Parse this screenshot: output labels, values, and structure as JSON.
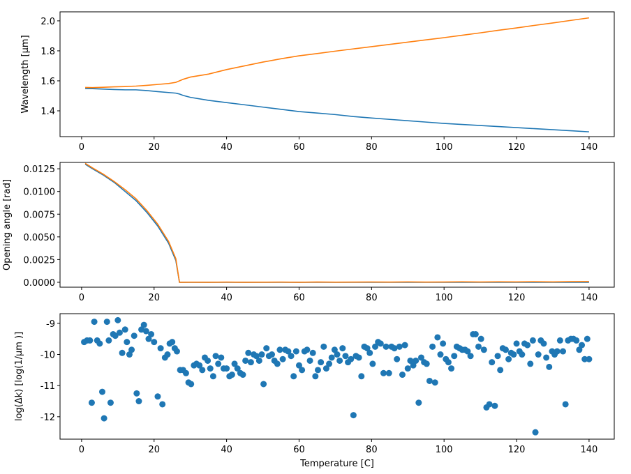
{
  "chart_data": [
    {
      "type": "line",
      "y_label": "Wavelength [μm]",
      "xlim": [
        -5.95,
        146.95
      ],
      "ylim": [
        1.228,
        2.06
      ],
      "xticks": [
        0,
        20,
        40,
        60,
        80,
        100,
        120,
        140
      ],
      "yticks": [
        1.4,
        1.6,
        1.8,
        {
          "value": 2,
          "label": "2.0"
        }
      ],
      "x": [
        1,
        3,
        6,
        9,
        12,
        15,
        18,
        21,
        24,
        26,
        27,
        28,
        30,
        35,
        40,
        45,
        50,
        55,
        60,
        65,
        70,
        75,
        80,
        85,
        90,
        95,
        100,
        105,
        110,
        115,
        120,
        125,
        130,
        135,
        140
      ],
      "series": [
        {
          "color": "#1f77b4",
          "values": [
            1.548,
            1.548,
            1.545,
            1.542,
            1.54,
            1.54,
            1.535,
            1.528,
            1.522,
            1.518,
            1.512,
            1.503,
            1.49,
            1.47,
            1.455,
            1.44,
            1.425,
            1.41,
            1.395,
            1.385,
            1.375,
            1.362,
            1.352,
            1.343,
            1.334,
            1.325,
            1.316,
            1.309,
            1.302,
            1.295,
            1.288,
            1.281,
            1.274,
            1.267,
            1.26
          ]
        },
        {
          "color": "#ff7f0e",
          "values": [
            1.556,
            1.555,
            1.557,
            1.56,
            1.562,
            1.565,
            1.57,
            1.576,
            1.582,
            1.59,
            1.6,
            1.61,
            1.625,
            1.645,
            1.675,
            1.7,
            1.725,
            1.747,
            1.767,
            1.782,
            1.798,
            1.813,
            1.828,
            1.843,
            1.858,
            1.873,
            1.888,
            1.904,
            1.92,
            1.937,
            1.953,
            1.97,
            1.986,
            2.003,
            2.02
          ]
        }
      ]
    },
    {
      "type": "line",
      "y_label": "Opening angle [rad]",
      "xlim": [
        -5.95,
        146.95
      ],
      "ylim": [
        -0.00054,
        0.0132
      ],
      "xticks": [
        0,
        20,
        40,
        60,
        80,
        100,
        120,
        140
      ],
      "yticks": [
        {
          "value": 0,
          "label": "0.0000"
        },
        0.0025,
        {
          "value": 0.005,
          "label": "0.0050"
        },
        0.0075,
        {
          "value": 0.01,
          "label": "0.0100"
        },
        0.0125
      ],
      "x": [
        1,
        3,
        6,
        9,
        12,
        15,
        18,
        21,
        24,
        26,
        27,
        28,
        30,
        35,
        40,
        45,
        50,
        55,
        60,
        65,
        70,
        75,
        80,
        85,
        90,
        95,
        100,
        105,
        110,
        115,
        120,
        125,
        130,
        135,
        140
      ],
      "series": [
        {
          "color": "#1f77b4",
          "values": [
            0.013,
            0.0125,
            0.0118,
            0.011,
            0.01,
            0.009,
            0.0077,
            0.0062,
            0.0043,
            0.0024,
            0,
            0,
            0,
            0,
            0,
            0,
            0,
            0,
            0,
            0,
            0,
            0,
            0,
            0,
            0,
            0,
            0,
            0,
            0,
            0,
            0,
            0,
            0,
            0,
            0
          ]
        },
        {
          "color": "#ff7f0e",
          "values": [
            0.0131,
            0.0126,
            0.0119,
            0.0111,
            0.0102,
            0.0092,
            0.0079,
            0.0064,
            0.0045,
            0.0026,
            0,
            0,
            1e-05,
            0,
            2e-05,
            0,
            1e-05,
            2e-05,
            0,
            3e-05,
            1e-05,
            2e-05,
            3e-05,
            2e-05,
            4e-05,
            2e-05,
            3e-05,
            5e-05,
            3e-05,
            5e-05,
            4e-05,
            6e-05,
            4e-05,
            7e-05,
            8e-05
          ]
        }
      ]
    },
    {
      "type": "scatter",
      "y_label": "log(Δk) [log(1/μm )]",
      "x_label": "Temperature [C]",
      "xlim": [
        -5.95,
        146.95
      ],
      "ylim": [
        -12.72,
        -8.69
      ],
      "xticks": [
        0,
        20,
        40,
        60,
        80,
        100,
        120,
        140
      ],
      "yticks": [
        -12,
        -11,
        -10,
        -9
      ],
      "x": [
        0.7,
        1.5,
        2.3,
        2.8,
        3.5,
        4.3,
        5,
        5.7,
        6.2,
        7,
        7.5,
        8,
        8.7,
        9.3,
        10,
        10.5,
        11.2,
        12,
        12.5,
        13.2,
        13.8,
        14.5,
        15.2,
        15.8,
        16.5,
        17.2,
        17.8,
        18.5,
        19.2,
        20,
        21,
        21.8,
        22.3,
        23,
        23.7,
        24.3,
        25,
        25.7,
        26.3,
        27.2,
        28,
        28.8,
        29.5,
        30.2,
        31,
        31.7,
        32.5,
        33.3,
        34,
        34.8,
        35.5,
        36.3,
        37,
        37.7,
        38.5,
        39.2,
        40,
        40.8,
        41.5,
        42.2,
        43,
        43.8,
        44.5,
        45.2,
        46,
        46.7,
        47.5,
        48.2,
        49,
        49.7,
        50.2,
        51,
        51.7,
        52.5,
        53.2,
        54,
        54.7,
        55.5,
        56.2,
        57,
        57.8,
        58.5,
        59.2,
        60,
        60.8,
        61.5,
        62.2,
        63,
        63.8,
        64.5,
        65.2,
        66,
        66.8,
        67.5,
        68.3,
        69,
        69.8,
        70.5,
        71.2,
        72,
        72.8,
        73.5,
        74.3,
        75,
        75.7,
        76.5,
        77.2,
        78,
        78.8,
        79.5,
        80.3,
        81,
        81.8,
        82.5,
        83.3,
        84,
        84.8,
        85.5,
        86.3,
        87,
        87.7,
        88.5,
        89.2,
        90,
        90.7,
        91.5,
        92.2,
        93,
        93.7,
        94.5,
        95.2,
        96,
        96.8,
        97.5,
        98.2,
        99,
        99.7,
        100.5,
        101.2,
        102,
        102.8,
        103.5,
        104.3,
        105,
        105.8,
        106.5,
        107.3,
        108,
        108.7,
        109.5,
        110.2,
        111,
        111.7,
        112.5,
        113.2,
        114,
        114.8,
        115.5,
        116.2,
        117,
        117.8,
        118.5,
        119.2,
        120,
        120.8,
        121.5,
        122.2,
        123,
        123.8,
        124.5,
        125.2,
        126,
        126.7,
        127.5,
        128.2,
        129,
        129.8,
        130.5,
        131.2,
        132,
        132.8,
        133.5,
        134.2,
        135,
        135.7,
        136.5,
        137.3,
        138,
        138.8,
        139.5,
        140
      ],
      "series": [
        {
          "color": "#1f77b4",
          "values": [
            -9.6,
            -9.55,
            -9.55,
            -11.55,
            -8.95,
            -9.55,
            -9.65,
            -11.2,
            -12.05,
            -8.95,
            -9.55,
            -11.55,
            -9.35,
            -9.4,
            -8.9,
            -9.3,
            -9.95,
            -9.2,
            -9.6,
            -10,
            -9.85,
            -9.4,
            -11.25,
            -11.5,
            -9.2,
            -9.05,
            -9.25,
            -9.5,
            -9.35,
            -9.6,
            -11.35,
            -9.8,
            -11.6,
            -10.1,
            -10,
            -9.65,
            -9.6,
            -9.8,
            -9.9,
            -10.5,
            -10.5,
            -10.6,
            -10.9,
            -10.95,
            -10.35,
            -10.3,
            -10.35,
            -10.5,
            -10.1,
            -10.2,
            -10.45,
            -10.7,
            -10.05,
            -10.3,
            -10.1,
            -10.45,
            -10.45,
            -10.7,
            -10.65,
            -10.3,
            -10.45,
            -10.6,
            -10.65,
            -10.2,
            -9.95,
            -10.25,
            -10,
            -10.05,
            -10.2,
            -10,
            -10.95,
            -9.8,
            -10.05,
            -10,
            -10.2,
            -10.3,
            -9.85,
            -10.15,
            -9.85,
            -9.9,
            -10.05,
            -10.7,
            -9.9,
            -10.35,
            -10.5,
            -9.9,
            -9.85,
            -10.2,
            -9.95,
            -10.7,
            -10.5,
            -10.25,
            -9.75,
            -10.45,
            -10.3,
            -10.1,
            -9.85,
            -10,
            -10.2,
            -9.8,
            -10.05,
            -10.25,
            -10.15,
            -11.95,
            -10.05,
            -10.1,
            -10.7,
            -9.75,
            -9.8,
            -9.95,
            -10.3,
            -9.75,
            -9.6,
            -9.65,
            -10.6,
            -9.75,
            -10.6,
            -9.75,
            -9.8,
            -10.15,
            -9.75,
            -10.65,
            -9.7,
            -10.45,
            -10.2,
            -10.35,
            -10.2,
            -11.55,
            -10.1,
            -10.25,
            -10.3,
            -10.85,
            -9.75,
            -10.9,
            -9.45,
            -10,
            -9.65,
            -10.15,
            -10.25,
            -10.45,
            -10.05,
            -9.75,
            -9.8,
            -9.85,
            -9.85,
            -9.9,
            -10.05,
            -9.35,
            -9.35,
            -9.75,
            -9.5,
            -9.85,
            -11.7,
            -11.6,
            -10.25,
            -11.65,
            -10.05,
            -10.5,
            -9.8,
            -9.85,
            -10.15,
            -9.95,
            -10,
            -9.65,
            -9.9,
            -10,
            -9.65,
            -9.7,
            -10.3,
            -9.55,
            -12.5,
            -10,
            -9.55,
            -9.65,
            -10.1,
            -10.4,
            -9.9,
            -10,
            -9.9,
            -9.55,
            -9.9,
            -11.6,
            -9.55,
            -9.5,
            -9.5,
            -9.55,
            -9.85,
            -9.7,
            -10.15,
            -9.5,
            -10.15
          ]
        }
      ]
    }
  ]
}
